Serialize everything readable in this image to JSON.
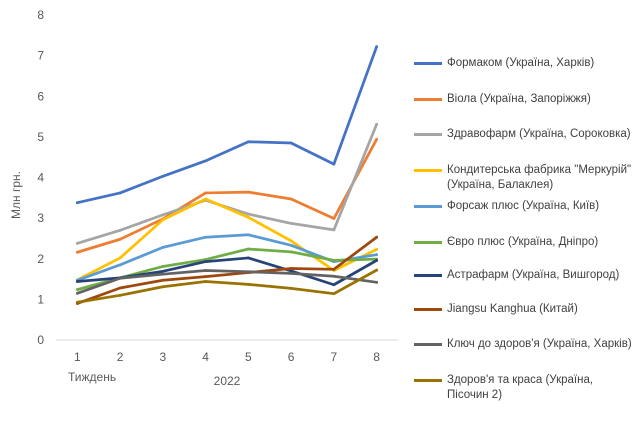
{
  "chart_data": {
    "type": "line",
    "ylabel": "Млн грн.",
    "xlabel": "Тиждень",
    "x_group_label": "2022",
    "categories": [
      "1",
      "2",
      "3",
      "4",
      "5",
      "6",
      "7",
      "8"
    ],
    "ylim": [
      0,
      8
    ],
    "yticks": [
      "0",
      "1",
      "2",
      "3",
      "4",
      "5",
      "6",
      "7",
      "8"
    ],
    "grid": false,
    "legend_position": "right",
    "series": [
      {
        "name": "Формаком (Україна, Харків)",
        "color": "#4472C4",
        "values": [
          3.38,
          3.62,
          4.03,
          4.41,
          4.88,
          4.85,
          4.33,
          7.22
        ]
      },
      {
        "name": "Віола (Україна, Запоріжжя)",
        "color": "#ED7D31",
        "values": [
          2.16,
          2.48,
          2.98,
          3.62,
          3.64,
          3.47,
          2.99,
          4.94
        ]
      },
      {
        "name": "Здравофарм (Україна, Сороковка)",
        "color": "#A5A5A5",
        "values": [
          2.38,
          2.7,
          3.08,
          3.44,
          3.1,
          2.87,
          2.71,
          5.31
        ]
      },
      {
        "name": "Кондитерська фабрика \"Меркурій\" (Україна, Балаклея)",
        "color": "#FFC000",
        "values": [
          1.48,
          2.02,
          2.96,
          3.47,
          3.02,
          2.44,
          1.71,
          2.23
        ]
      },
      {
        "name": "Форсаж плюс (Україна, Київ)",
        "color": "#5B9BD5",
        "values": [
          1.47,
          1.85,
          2.28,
          2.53,
          2.59,
          2.33,
          1.93,
          2.1
        ]
      },
      {
        "name": "Євро плюс (Україна, Дніпро)",
        "color": "#70AD47",
        "values": [
          1.24,
          1.53,
          1.81,
          1.98,
          2.24,
          2.17,
          1.96,
          1.99
        ]
      },
      {
        "name": "Астрафарм (Україна, Вишгород)",
        "color": "#264478",
        "values": [
          1.44,
          1.53,
          1.69,
          1.93,
          2.02,
          1.7,
          1.36,
          1.96
        ]
      },
      {
        "name": "Jiangsu Kanghua (Китай)",
        "color": "#9E480E",
        "values": [
          0.9,
          1.28,
          1.47,
          1.56,
          1.66,
          1.76,
          1.74,
          2.53
        ]
      },
      {
        "name": "Ключ до здоров'я (Україна, Харків)",
        "color": "#636363",
        "values": [
          1.15,
          1.52,
          1.62,
          1.71,
          1.68,
          1.64,
          1.57,
          1.42
        ]
      },
      {
        "name": "Здоров'я та краса (Україна, Пісочин 2)",
        "color": "#997300",
        "values": [
          0.93,
          1.1,
          1.31,
          1.44,
          1.37,
          1.27,
          1.14,
          1.72
        ]
      }
    ]
  }
}
